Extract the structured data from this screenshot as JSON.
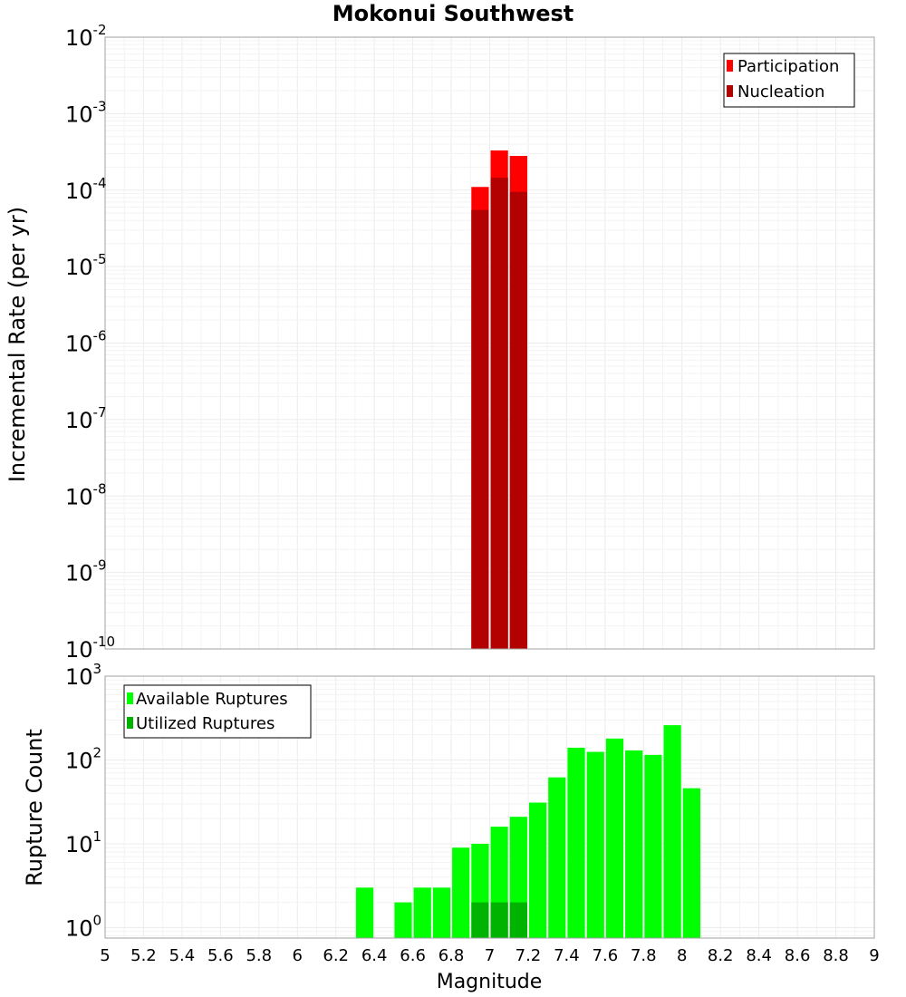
{
  "chart_data": [
    {
      "type": "bar",
      "panel": "top",
      "title": "Mokonui Southwest",
      "ylabel": "Incremental Rate (per yr)",
      "yscale": "log",
      "ylim": [
        1e-10,
        0.01
      ],
      "xlim": [
        5,
        9
      ],
      "ytick_exponents": [
        "-10",
        "-9",
        "-8",
        "-7",
        "-6",
        "-5",
        "-4",
        "-3",
        "-2"
      ],
      "ytick_base": "10",
      "legend": {
        "placement": "top-right",
        "entries": [
          "Participation",
          "Nucleation"
        ]
      },
      "colors": {
        "participation": "#ff0000",
        "nucleation": "#b30000"
      },
      "series": [
        {
          "name": "Participation",
          "x": [
            6.95,
            7.05,
            7.15
          ],
          "values": [
            0.00011,
            0.00033,
            0.00028
          ]
        },
        {
          "name": "Nucleation",
          "x": [
            6.95,
            7.05,
            7.15
          ],
          "values": [
            5.5e-05,
            0.000145,
            9.5e-05
          ]
        }
      ]
    },
    {
      "type": "bar",
      "panel": "bottom",
      "ylabel": "Rupture Count",
      "xlabel": "Magnitude",
      "yscale": "log",
      "ylim": [
        0.75,
        1000
      ],
      "xlim": [
        5,
        9
      ],
      "ytick_exponents": [
        "0",
        "1",
        "2",
        "3"
      ],
      "ytick_base": "10",
      "xticks": [
        "5",
        "5.2",
        "5.4",
        "5.6",
        "5.8",
        "6",
        "6.2",
        "6.4",
        "6.6",
        "6.8",
        "7",
        "7.2",
        "7.4",
        "7.6",
        "7.8",
        "8",
        "8.2",
        "8.4",
        "8.6",
        "8.8",
        "9"
      ],
      "legend": {
        "placement": "top-left",
        "entries": [
          "Available Ruptures",
          "Utilized Ruptures"
        ]
      },
      "colors": {
        "available": "#00ff00",
        "utilized": "#00b300"
      },
      "series": [
        {
          "name": "Available Ruptures",
          "x": [
            6.35,
            6.55,
            6.65,
            6.75,
            6.85,
            6.95,
            7.05,
            7.15,
            7.25,
            7.35,
            7.45,
            7.55,
            7.65,
            7.75,
            7.85,
            7.95,
            8.05
          ],
          "values": [
            3,
            2,
            3,
            3,
            9,
            10,
            16,
            21,
            31,
            62,
            140,
            125,
            180,
            130,
            115,
            260,
            46
          ]
        },
        {
          "name": "Utilized Ruptures",
          "x": [
            6.95,
            7.05,
            7.15
          ],
          "values": [
            2,
            2,
            2
          ]
        }
      ]
    }
  ]
}
